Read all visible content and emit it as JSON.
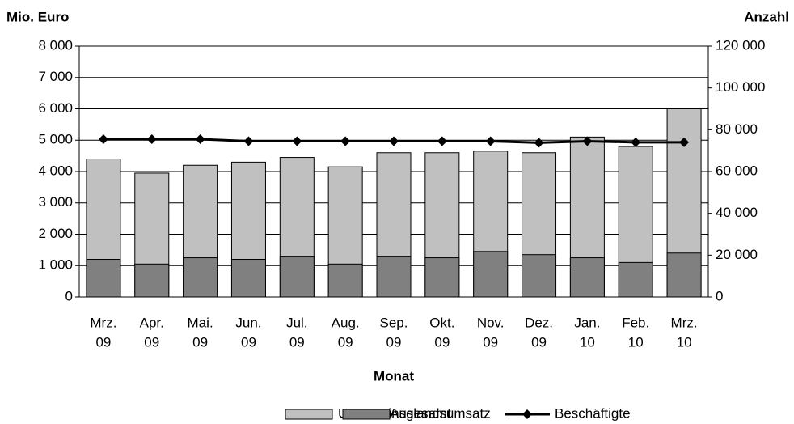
{
  "chart_data": {
    "type": "bar",
    "y_title": "Mio. Euro",
    "y2_title": "Anzahl",
    "x_title": "Monat",
    "categories": [
      [
        "Mrz.",
        "09"
      ],
      [
        "Apr.",
        "09"
      ],
      [
        "Mai.",
        "09"
      ],
      [
        "Jun.",
        "09"
      ],
      [
        "Jul.",
        "09"
      ],
      [
        "Aug.",
        "09"
      ],
      [
        "Sep.",
        "09"
      ],
      [
        "Okt.",
        "09"
      ],
      [
        "Nov.",
        "09"
      ],
      [
        "Dez.",
        "09"
      ],
      [
        "Jan.",
        "10"
      ],
      [
        "Feb.",
        "10"
      ],
      [
        "Mrz.",
        "10"
      ]
    ],
    "series": [
      {
        "name": "Umsatz insgesamt",
        "type": "bar",
        "color": "#c0c0c0",
        "values": [
          4400,
          3950,
          4200,
          4300,
          4450,
          4150,
          4600,
          4600,
          4650,
          4600,
          5100,
          4800,
          6000
        ]
      },
      {
        "name": "Auslandsumsatz",
        "type": "bar",
        "color": "#808080",
        "values": [
          1200,
          1050,
          1250,
          1200,
          1300,
          1050,
          1300,
          1250,
          1450,
          1350,
          1250,
          1100,
          1400
        ]
      },
      {
        "name": "Beschäftigte",
        "type": "line",
        "axis": "y2",
        "color": "#000000",
        "values": [
          75500,
          75500,
          75500,
          74500,
          74500,
          74500,
          74500,
          74500,
          74500,
          73800,
          74500,
          74000,
          74000
        ]
      }
    ],
    "ylim": [
      0,
      8000
    ],
    "yticks": [
      0,
      {
        "value": 1000,
        "label": "1 000"
      },
      {
        "value": 2000,
        "label": "2 000"
      },
      {
        "value": 3000,
        "label": "3 000"
      },
      {
        "value": 4000,
        "label": "4 000"
      },
      {
        "value": 5000,
        "label": "5 000"
      },
      {
        "value": 6000,
        "label": "6 000"
      },
      {
        "value": 7000,
        "label": "7 000"
      },
      {
        "value": 8000,
        "label": "8 000"
      }
    ],
    "y2lim": [
      0,
      120000
    ],
    "y2ticks": [
      0,
      {
        "value": 20000,
        "label": "20 000"
      },
      {
        "value": 40000,
        "label": "40 000"
      },
      {
        "value": 60000,
        "label": "60 000"
      },
      {
        "value": 80000,
        "label": "80 000"
      },
      {
        "value": 100000,
        "label": "100 000"
      },
      {
        "value": 120000,
        "label": "120 000"
      }
    ],
    "grid": true,
    "legend": "bottom"
  }
}
